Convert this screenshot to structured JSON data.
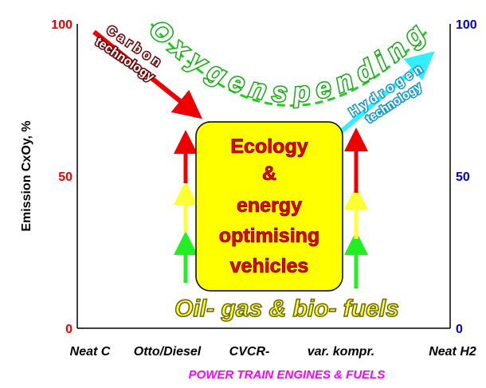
{
  "y_axis": {
    "label": "Emission CxOy, %",
    "left_ticks": [
      100,
      50,
      0
    ],
    "right_ticks": [
      100,
      50,
      0
    ]
  },
  "x_axis": {
    "categories": [
      "Neat C",
      "Otto/Diesel",
      "CVCR-",
      "var. kompr.",
      "Neat H2"
    ],
    "title": "POWER TRAIN ENGINES & FUELS"
  },
  "annotations": {
    "carbon": {
      "line1": "C a r b o n",
      "line2": "technology"
    },
    "oxygen": "O x y g e n  s p e n d i n g",
    "hydrogen": {
      "line1": "H y d r o g e n",
      "line2": "technology"
    },
    "box": [
      "Ecology",
      "&",
      "energy",
      "optimising",
      "vehicles"
    ],
    "fuels": "Oil- gas & bio- fuels"
  }
}
